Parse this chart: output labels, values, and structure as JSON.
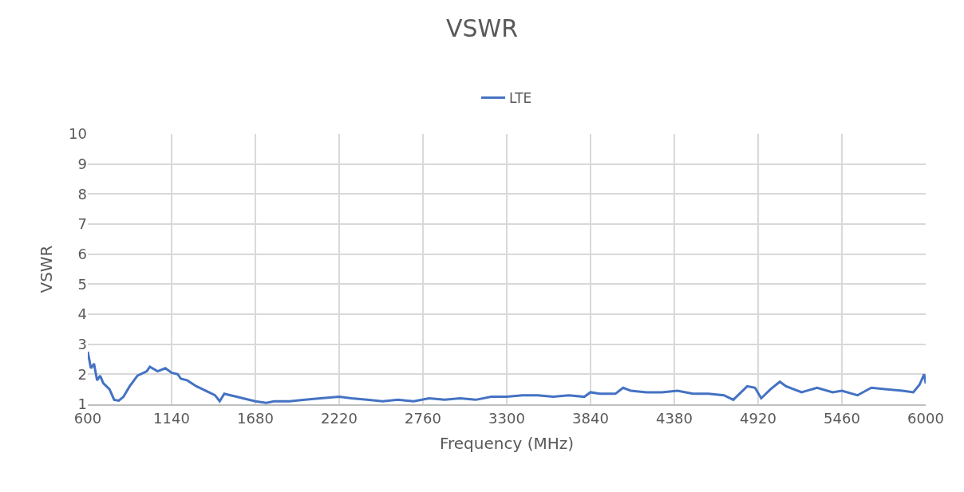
{
  "chart_data": {
    "type": "line",
    "title": "VSWR",
    "xlabel": "Frequency (MHz)",
    "ylabel": "VSWR",
    "x": [
      600,
      620,
      640,
      660,
      680,
      700,
      740,
      770,
      800,
      830,
      870,
      920,
      980,
      1000,
      1050,
      1100,
      1140,
      1180,
      1200,
      1240,
      1300,
      1380,
      1420,
      1450,
      1480,
      1520,
      1560,
      1600,
      1680,
      1750,
      1800,
      1900,
      2000,
      2100,
      2220,
      2300,
      2400,
      2500,
      2600,
      2700,
      2800,
      2900,
      3000,
      3100,
      3200,
      3300,
      3400,
      3500,
      3600,
      3700,
      3800,
      3840,
      3900,
      4000,
      4050,
      4100,
      4200,
      4300,
      4400,
      4500,
      4600,
      4700,
      4760,
      4850,
      4900,
      4940,
      5000,
      5060,
      5100,
      5200,
      5300,
      5400,
      5460,
      5560,
      5650,
      5750,
      5850,
      5920,
      5960,
      5990,
      6000
    ],
    "series": [
      {
        "name": "LTE",
        "color": "#4472c4",
        "values": [
          2.75,
          2.2,
          2.35,
          1.8,
          1.95,
          1.7,
          1.5,
          1.15,
          1.12,
          1.25,
          1.6,
          1.95,
          2.1,
          2.25,
          2.1,
          2.2,
          2.05,
          2.0,
          1.85,
          1.8,
          1.6,
          1.4,
          1.3,
          1.1,
          1.35,
          1.3,
          1.25,
          1.2,
          1.1,
          1.05,
          1.1,
          1.1,
          1.15,
          1.2,
          1.25,
          1.2,
          1.15,
          1.1,
          1.15,
          1.1,
          1.2,
          1.15,
          1.2,
          1.15,
          1.25,
          1.25,
          1.3,
          1.3,
          1.25,
          1.3,
          1.25,
          1.4,
          1.35,
          1.35,
          1.55,
          1.45,
          1.4,
          1.4,
          1.45,
          1.35,
          1.35,
          1.3,
          1.15,
          1.6,
          1.55,
          1.2,
          1.5,
          1.75,
          1.6,
          1.4,
          1.55,
          1.4,
          1.45,
          1.3,
          1.55,
          1.5,
          1.45,
          1.4,
          1.65,
          2.0,
          1.7
        ]
      }
    ],
    "xlim": [
      600,
      6000
    ],
    "xticks": [
      600,
      1140,
      1680,
      2220,
      2760,
      3300,
      3840,
      4380,
      4920,
      5460,
      6000
    ],
    "ylim": [
      1,
      10
    ],
    "yticks": [
      1,
      2,
      3,
      4,
      5,
      6,
      7,
      8,
      9,
      10
    ],
    "grid": true,
    "legend": "top",
    "marker": "none",
    "line_style": "solid"
  }
}
